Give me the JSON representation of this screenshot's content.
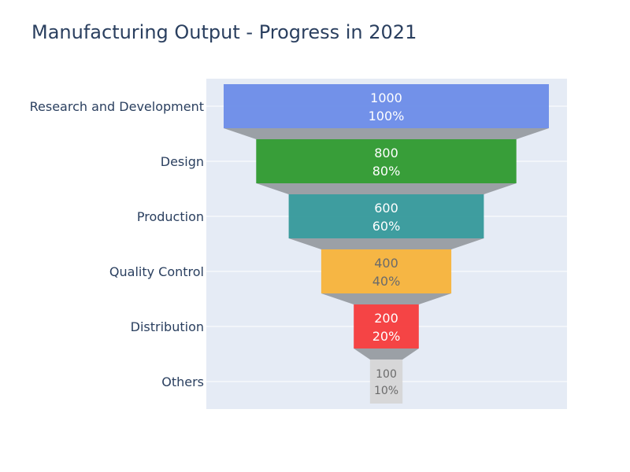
{
  "chart_data": {
    "type": "funnel",
    "title": "Manufacturing Output - Progress in 2021",
    "categories": [
      "Research and Development",
      "Design",
      "Production",
      "Quality Control",
      "Distribution",
      "Others"
    ],
    "values": [
      1000,
      800,
      600,
      400,
      200,
      100
    ],
    "percent_labels": [
      "100%",
      "80%",
      "60%",
      "40%",
      "20%",
      "10%"
    ],
    "colors": [
      "#6c8ce8",
      "#2e9a2e",
      "#35999a",
      "#f7b33a",
      "#f53b3b",
      "#d6d6d6"
    ],
    "label_colors": [
      "#ffffff",
      "#ffffff",
      "#ffffff",
      "#6b6b6b",
      "#ffffff",
      "#6b6b6b"
    ],
    "connector_color": "#9ba0a6",
    "plot_background": "#e5ebf5",
    "grid": true
  }
}
